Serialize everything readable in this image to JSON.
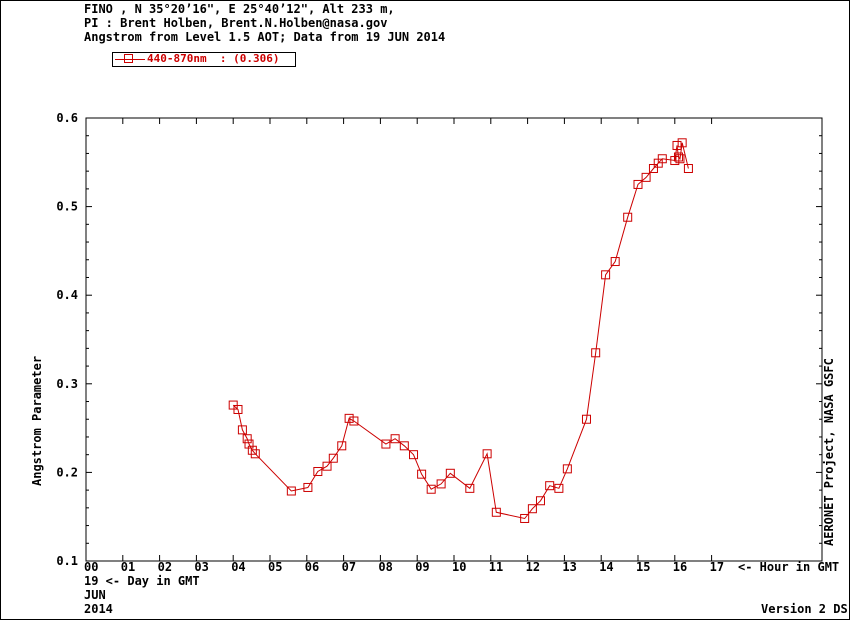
{
  "header": {
    "line1": "FINO , N 35°20’16\", E 25°40’12\", Alt 233 m,",
    "line2": "PI : Brent Holben, Brent.N.Holben@nasa.gov",
    "line3": "Angstrom from Level 1.5 AOT; Data from 19 JUN 2014"
  },
  "legend": {
    "label": "440-870nm  : (0.306)",
    "color": "#cc0000"
  },
  "x_axis": {
    "ticks": [
      "00",
      "01",
      "02",
      "03",
      "04",
      "05",
      "06",
      "07",
      "08",
      "09",
      "10",
      "11",
      "12",
      "13",
      "14",
      "15",
      "16",
      "17"
    ],
    "unit_label": "<- Hour in GMT",
    "day_line": "19  <- Day in GMT",
    "month": "JUN",
    "year": "2014"
  },
  "y_axis": {
    "label": "Angstrom Parameter",
    "ticks": [
      "0.1",
      "0.2",
      "0.3",
      "0.4",
      "0.5",
      "0.6"
    ]
  },
  "side_label": "AERONET Project, NASA GSFC",
  "version": "Version 2 DS",
  "chart_data": {
    "type": "line",
    "title": "Angstrom from Level 1.5 AOT; Data from 19 JUN 2014",
    "xlabel": "Hour in GMT",
    "ylabel": "Angstrom Parameter",
    "xlim": [
      0,
      20
    ],
    "ylim": [
      0.1,
      0.6
    ],
    "grid": false,
    "legend_position": "top-left",
    "series": [
      {
        "name": "440-870nm  : (0.306)",
        "color": "#cc0000",
        "marker": "square",
        "points": [
          [
            4.0,
            0.276
          ],
          [
            4.13,
            0.271
          ],
          [
            4.25,
            0.248
          ],
          [
            4.38,
            0.238
          ],
          [
            4.43,
            0.232
          ],
          [
            4.52,
            0.225
          ],
          [
            4.6,
            0.221
          ],
          [
            5.58,
            0.179
          ],
          [
            6.03,
            0.183
          ],
          [
            6.3,
            0.201
          ],
          [
            6.55,
            0.207
          ],
          [
            6.72,
            0.216
          ],
          [
            6.95,
            0.23
          ],
          [
            7.15,
            0.261
          ],
          [
            7.28,
            0.258
          ],
          [
            8.15,
            0.232
          ],
          [
            8.4,
            0.238
          ],
          [
            8.65,
            0.23
          ],
          [
            8.9,
            0.22
          ],
          [
            9.12,
            0.198
          ],
          [
            9.38,
            0.181
          ],
          [
            9.65,
            0.187
          ],
          [
            9.9,
            0.199
          ],
          [
            10.43,
            0.182
          ],
          [
            10.9,
            0.221
          ],
          [
            11.15,
            0.155
          ],
          [
            11.92,
            0.148
          ],
          [
            12.13,
            0.159
          ],
          [
            12.35,
            0.168
          ],
          [
            12.6,
            0.185
          ],
          [
            12.85,
            0.182
          ],
          [
            13.08,
            0.204
          ],
          [
            13.6,
            0.26
          ],
          [
            13.85,
            0.335
          ],
          [
            14.12,
            0.423
          ],
          [
            14.38,
            0.438
          ],
          [
            14.72,
            0.488
          ],
          [
            15.0,
            0.525
          ],
          [
            15.22,
            0.533
          ],
          [
            15.42,
            0.543
          ],
          [
            15.55,
            0.549
          ],
          [
            15.66,
            0.554
          ],
          [
            16.0,
            0.552
          ],
          [
            16.06,
            0.569
          ],
          [
            16.1,
            0.556
          ],
          [
            16.14,
            0.554
          ],
          [
            16.2,
            0.572
          ],
          [
            16.37,
            0.543
          ]
        ]
      }
    ]
  }
}
